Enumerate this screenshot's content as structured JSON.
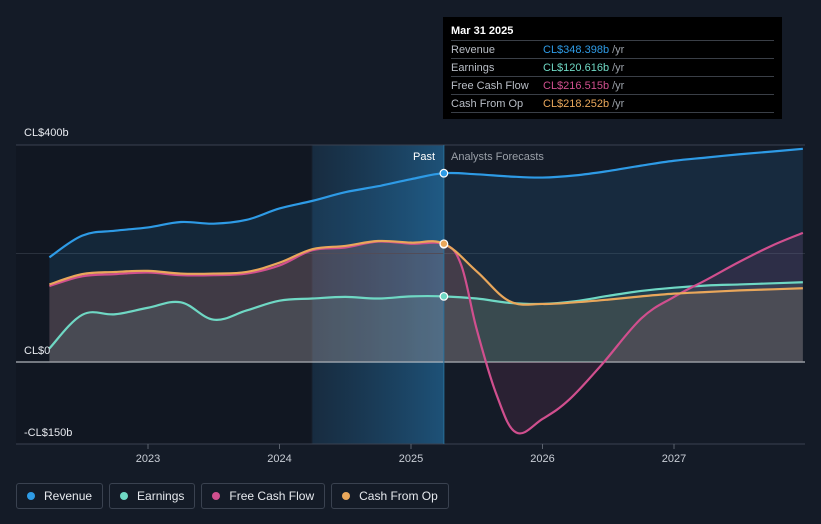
{
  "tooltip": {
    "date": "Mar 31 2025",
    "rows": [
      {
        "label": "Revenue",
        "value": "CL$348.398b",
        "unit": "/yr",
        "color": "#2e9be6"
      },
      {
        "label": "Earnings",
        "value": "CL$120.616b",
        "unit": "/yr",
        "color": "#6fd8c4"
      },
      {
        "label": "Free Cash Flow",
        "value": "CL$216.515b",
        "unit": "/yr",
        "color": "#d04f8e"
      },
      {
        "label": "Cash From Op",
        "value": "CL$218.252b",
        "unit": "/yr",
        "color": "#e9a75b"
      }
    ]
  },
  "legend": [
    {
      "label": "Revenue",
      "color": "#2e9be6"
    },
    {
      "label": "Earnings",
      "color": "#6fd8c4"
    },
    {
      "label": "Free Cash Flow",
      "color": "#d04f8e"
    },
    {
      "label": "Cash From Op",
      "color": "#e9a75b"
    }
  ],
  "chart_data": {
    "type": "line",
    "y_unit_labels": {
      "top": "CL$400b",
      "zero": "CL$0",
      "bottom": "-CL$150b"
    },
    "ylim": [
      -150,
      400
    ],
    "xlim": [
      2022.25,
      2027.98
    ],
    "x_ticks": [
      2023,
      2024,
      2025,
      2026,
      2027
    ],
    "divider_x": 2025.25,
    "highlight_start": 2024.25,
    "past_label": "Past",
    "forecast_label": "Analysts Forecasts",
    "grid": true,
    "legend_position": "bottom-left",
    "series": [
      {
        "name": "Revenue",
        "color": "#2e9be6",
        "x": [
          2022.25,
          2022.5,
          2022.75,
          2023.0,
          2023.25,
          2023.5,
          2023.75,
          2024.0,
          2024.25,
          2024.5,
          2024.75,
          2025.0,
          2025.25,
          2025.5,
          2025.75,
          2026.0,
          2026.25,
          2026.5,
          2026.75,
          2027.0,
          2027.25,
          2027.5,
          2027.75,
          2027.98
        ],
        "y": [
          193,
          233,
          242,
          248,
          258,
          255,
          262,
          283,
          297,
          313,
          324,
          337,
          348,
          346,
          342,
          340,
          344,
          352,
          362,
          371,
          377,
          383,
          388,
          393
        ]
      },
      {
        "name": "Earnings",
        "color": "#6fd8c4",
        "x": [
          2022.25,
          2022.5,
          2022.75,
          2023.0,
          2023.25,
          2023.5,
          2023.75,
          2024.0,
          2024.25,
          2024.5,
          2024.75,
          2025.0,
          2025.25,
          2025.5,
          2025.75,
          2026.0,
          2026.25,
          2026.5,
          2026.75,
          2027.0,
          2027.25,
          2027.5,
          2027.75,
          2027.98
        ],
        "y": [
          25,
          87,
          88,
          100,
          110,
          78,
          95,
          113,
          117,
          120,
          117,
          121,
          121,
          117,
          109,
          107,
          112,
          122,
          131,
          137,
          141,
          143,
          145,
          147
        ]
      },
      {
        "name": "Free Cash Flow",
        "color": "#d04f8e",
        "x": [
          2022.25,
          2022.5,
          2022.75,
          2023.0,
          2023.25,
          2023.5,
          2023.75,
          2024.0,
          2024.25,
          2024.5,
          2024.75,
          2025.0,
          2025.25,
          2025.38,
          2025.5,
          2025.65,
          2025.8,
          2026.0,
          2026.2,
          2026.45,
          2026.75,
          2027.0,
          2027.25,
          2027.5,
          2027.75,
          2027.98
        ],
        "y": [
          140,
          158,
          162,
          165,
          160,
          160,
          163,
          178,
          206,
          211,
          222,
          218,
          217,
          180,
          60,
          -60,
          -130,
          -105,
          -70,
          -5,
          80,
          120,
          152,
          185,
          215,
          238
        ]
      },
      {
        "name": "Cash From Op",
        "color": "#e9a75b",
        "x": [
          2022.25,
          2022.5,
          2022.75,
          2023.0,
          2023.25,
          2023.5,
          2023.75,
          2024.0,
          2024.25,
          2024.5,
          2024.75,
          2025.0,
          2025.25,
          2025.5,
          2025.75,
          2026.0,
          2026.25,
          2026.5,
          2026.75,
          2027.0,
          2027.25,
          2027.5,
          2027.75,
          2027.98
        ],
        "y": [
          143,
          162,
          166,
          168,
          163,
          163,
          166,
          183,
          208,
          214,
          223,
          220,
          218,
          167,
          112,
          107,
          110,
          115,
          121,
          126,
          129,
          132,
          134,
          136
        ]
      }
    ]
  }
}
